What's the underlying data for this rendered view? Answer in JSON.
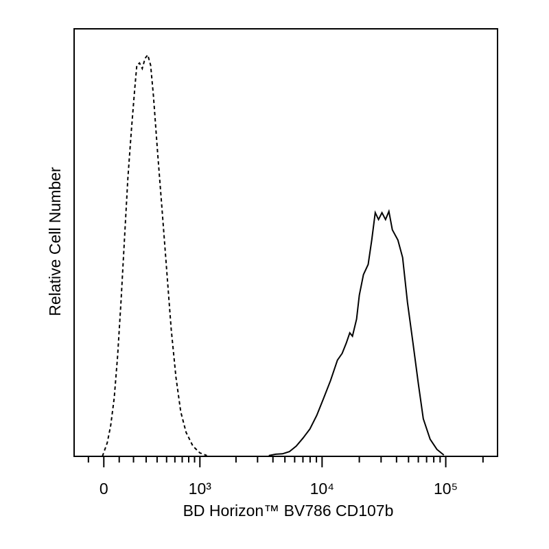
{
  "chart_data": {
    "type": "line",
    "xlabel": "BD Horizon™ BV786 CD107b",
    "ylabel": "Relative Cell Number",
    "xscale": "biexponential",
    "xlim": [
      -200,
      262144
    ],
    "ylim": [
      0,
      100
    ],
    "xticks": [
      {
        "value": 0,
        "label": "0"
      },
      {
        "value": 1000,
        "label": "10³"
      },
      {
        "value": 10000,
        "label": "10⁴"
      },
      {
        "value": 100000,
        "label": "10⁵"
      }
    ],
    "xminorticks": [
      -100,
      100,
      200,
      300,
      400,
      500,
      600,
      700,
      800,
      900,
      2000,
      3000,
      4000,
      5000,
      6000,
      7000,
      8000,
      9000,
      20000,
      30000,
      40000,
      50000,
      60000,
      70000,
      80000,
      90000,
      200000
    ],
    "series": [
      {
        "color": "#000000",
        "dash": "dashed",
        "x": [
          -9,
          22,
          44,
          67,
          89,
          112,
          135,
          159,
          184,
          209,
          225,
          246,
          268,
          291,
          314,
          339,
          365,
          404,
          453,
          505,
          554,
          614,
          679,
          759,
          871,
          1000,
          1146
        ],
        "values": [
          0,
          3.2,
          7.2,
          13.6,
          23.3,
          36.1,
          50.6,
          65,
          76.2,
          85.9,
          91.5,
          92,
          90.7,
          93.1,
          93.9,
          91.5,
          84.3,
          71.4,
          57,
          42.5,
          29.7,
          18.5,
          10.4,
          5.6,
          2.4,
          0.8,
          0.2
        ]
      },
      {
        "color": "#000000",
        "dash": "solid",
        "x": [
          3700,
          4207,
          4782,
          5435,
          6177,
          7020,
          7970,
          9060,
          10300,
          11700,
          13300,
          14540,
          15700,
          16740,
          17600,
          19000,
          20000,
          21600,
          23600,
          25200,
          26900,
          28600,
          30500,
          32600,
          34700,
          37000,
          41000,
          44800,
          49000,
          54300,
          60100,
          65800,
          74800,
          85000,
          96500
        ],
        "values": [
          0.2,
          0.5,
          0.6,
          1.1,
          2.4,
          4.3,
          6.4,
          9.6,
          13.6,
          17.7,
          22.5,
          24.1,
          26.5,
          28.9,
          28.1,
          32.1,
          37.7,
          42.5,
          44.9,
          50.6,
          57,
          55.4,
          57,
          55.4,
          57.3,
          53,
          50.6,
          46.5,
          36.1,
          26.5,
          16.9,
          8.8,
          4,
          1.6,
          0.3
        ]
      }
    ]
  }
}
